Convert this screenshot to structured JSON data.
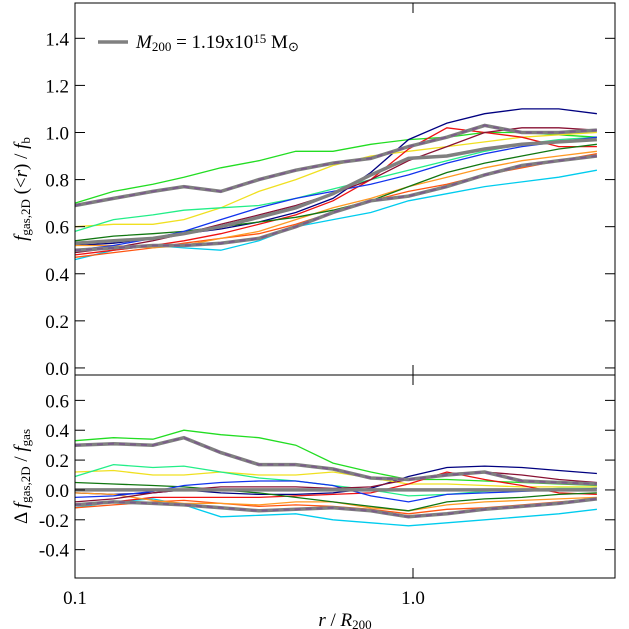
{
  "chart_data": [
    {
      "type": "line",
      "ylabel": [
        "f",
        "gas,2D",
        " (<",
        "r",
        ") / ",
        "f",
        "b"
      ],
      "legend_label": [
        "M",
        "200",
        " = 1.19x10",
        "15",
        " M",
        "⊙"
      ],
      "legend_color": "#808080",
      "x": [
        0.1,
        0.13,
        0.17,
        0.21,
        0.27,
        0.35,
        0.45,
        0.58,
        0.75,
        0.97,
        1.26,
        1.63,
        2.1,
        2.7,
        3.5
      ],
      "xlim": [
        0.1,
        3.96
      ],
      "xticks": [
        0.1,
        1
      ],
      "xlog": true,
      "ylim": [
        -0.03,
        1.55
      ],
      "yticks": [
        {
          "value": 0,
          "label": "0.0"
        },
        0.2,
        0.4,
        0.6,
        0.8,
        {
          "value": 1,
          "label": "1.0"
        },
        1.2,
        1.4
      ],
      "series": [
        {
          "color": "#22dd22",
          "values": [
            0.7,
            0.75,
            0.78,
            0.81,
            0.85,
            0.88,
            0.92,
            0.92,
            0.95,
            0.97,
            0.98,
            1.0,
            1.0,
            0.99,
            0.98
          ]
        },
        {
          "color": "#000080",
          "values": [
            0.52,
            0.53,
            0.55,
            0.57,
            0.59,
            0.62,
            0.66,
            0.72,
            0.83,
            0.97,
            1.04,
            1.08,
            1.1,
            1.1,
            1.08
          ]
        },
        {
          "color": "#00ccee",
          "values": [
            0.46,
            0.5,
            0.52,
            0.51,
            0.5,
            0.54,
            0.6,
            0.63,
            0.66,
            0.71,
            0.74,
            0.77,
            0.79,
            0.81,
            0.84
          ]
        },
        {
          "color": "#f0e020",
          "values": [
            0.6,
            0.61,
            0.61,
            0.63,
            0.68,
            0.75,
            0.8,
            0.86,
            0.9,
            0.92,
            0.94,
            0.96,
            0.98,
            0.99,
            1.0
          ]
        },
        {
          "color": "#22ee88",
          "values": [
            0.58,
            0.63,
            0.65,
            0.67,
            0.68,
            0.69,
            0.72,
            0.76,
            0.8,
            0.84,
            0.88,
            0.92,
            0.95,
            0.97,
            0.98
          ]
        },
        {
          "color": "#ee1111",
          "values": [
            0.48,
            0.5,
            0.52,
            0.54,
            0.57,
            0.61,
            0.65,
            0.71,
            0.8,
            0.93,
            1.02,
            1.0,
            0.98,
            0.94,
            0.94
          ]
        },
        {
          "color": "#ff5511",
          "values": [
            0.47,
            0.49,
            0.51,
            0.53,
            0.55,
            0.57,
            0.61,
            0.66,
            0.71,
            0.75,
            0.78,
            0.82,
            0.85,
            0.88,
            0.91
          ]
        },
        {
          "color": "#ff9922",
          "values": [
            0.52,
            0.52,
            0.51,
            0.52,
            0.55,
            0.58,
            0.63,
            0.68,
            0.72,
            0.77,
            0.81,
            0.85,
            0.88,
            0.9,
            0.92
          ]
        },
        {
          "color": "#117711",
          "values": [
            0.54,
            0.56,
            0.57,
            0.58,
            0.6,
            0.62,
            0.64,
            0.67,
            0.71,
            0.77,
            0.83,
            0.87,
            0.9,
            0.93,
            0.95
          ]
        },
        {
          "color": "#1133ee",
          "values": [
            0.5,
            0.52,
            0.55,
            0.58,
            0.63,
            0.68,
            0.72,
            0.75,
            0.78,
            0.82,
            0.87,
            0.91,
            0.94,
            0.96,
            0.98
          ]
        },
        {
          "color": "#881133",
          "values": [
            0.49,
            0.51,
            0.54,
            0.57,
            0.61,
            0.65,
            0.69,
            0.74,
            0.8,
            0.88,
            0.94,
            1.0,
            1.02,
            1.02,
            1.01
          ]
        },
        {
          "color": "#808080",
          "dash_color": "#7a5a8a",
          "values": [
            0.69,
            0.72,
            0.75,
            0.77,
            0.75,
            0.8,
            0.84,
            0.87,
            0.89,
            0.94,
            0.98,
            1.03,
            1.0,
            1.0,
            1.01
          ]
        },
        {
          "color": "#808080",
          "dash_color": "#7a5a8a",
          "values": [
            0.5,
            0.51,
            0.52,
            0.52,
            0.53,
            0.55,
            0.6,
            0.66,
            0.71,
            0.73,
            0.77,
            0.82,
            0.86,
            0.88,
            0.9
          ]
        },
        {
          "color": "#808080",
          "values": [
            0.53,
            0.54,
            0.55,
            0.57,
            0.6,
            0.64,
            0.68,
            0.74,
            0.82,
            0.89,
            0.9,
            0.93,
            0.95,
            0.96,
            0.97
          ]
        }
      ]
    },
    {
      "type": "line",
      "ylabel": [
        "Δ ",
        "f",
        "gas,2D",
        " / ",
        "f",
        "gas"
      ],
      "xlabel": [
        "r",
        " / ",
        "R",
        "200"
      ],
      "x": [
        0.1,
        0.13,
        0.17,
        0.21,
        0.27,
        0.35,
        0.45,
        0.58,
        0.75,
        0.97,
        1.26,
        1.63,
        2.1,
        2.7,
        3.5
      ],
      "xlim": [
        0.1,
        3.96
      ],
      "xticks": [
        0.1,
        {
          "value": 1,
          "label": "1.0"
        }
      ],
      "xlog": true,
      "ylim": [
        -0.59,
        0.77
      ],
      "yticks": [
        -0.4,
        -0.2,
        {
          "value": 0,
          "label": "0.0"
        },
        0.2,
        0.4,
        0.6
      ],
      "series": [
        {
          "color": "#22dd22",
          "values": [
            0.33,
            0.35,
            0.34,
            0.4,
            0.37,
            0.35,
            0.3,
            0.18,
            0.12,
            0.07,
            0.07,
            0.06,
            0.05,
            0.04,
            0.03
          ]
        },
        {
          "color": "#000080",
          "values": [
            -0.02,
            -0.03,
            -0.02,
            0.0,
            -0.02,
            -0.03,
            -0.03,
            -0.02,
            0.01,
            0.09,
            0.15,
            0.16,
            0.15,
            0.13,
            0.11
          ]
        },
        {
          "color": "#00ccee",
          "values": [
            -0.12,
            -0.08,
            -0.06,
            -0.1,
            -0.18,
            -0.17,
            -0.16,
            -0.2,
            -0.22,
            -0.24,
            -0.22,
            -0.2,
            -0.18,
            -0.16,
            -0.13
          ]
        },
        {
          "color": "#f0e020",
          "values": [
            0.12,
            0.13,
            0.1,
            0.1,
            0.12,
            0.1,
            0.1,
            0.12,
            0.08,
            0.04,
            0.04,
            0.03,
            0.02,
            0.02,
            0.02
          ]
        },
        {
          "color": "#22ee88",
          "values": [
            0.09,
            0.17,
            0.15,
            0.16,
            0.12,
            0.08,
            0.06,
            0.03,
            0.0,
            -0.04,
            -0.03,
            -0.01,
            0.0,
            0.01,
            0.01
          ]
        },
        {
          "color": "#ee1111",
          "values": [
            -0.1,
            -0.08,
            -0.05,
            -0.05,
            -0.05,
            -0.05,
            -0.04,
            -0.03,
            -0.02,
            0.04,
            0.12,
            0.07,
            0.03,
            -0.02,
            -0.03
          ]
        },
        {
          "color": "#ff5511",
          "values": [
            -0.12,
            -0.1,
            -0.08,
            -0.07,
            -0.09,
            -0.11,
            -0.1,
            -0.11,
            -0.13,
            -0.16,
            -0.13,
            -0.12,
            -0.1,
            -0.08,
            -0.06
          ]
        },
        {
          "color": "#ff9922",
          "values": [
            -0.02,
            -0.03,
            -0.07,
            -0.09,
            -0.09,
            -0.1,
            -0.08,
            -0.08,
            -0.12,
            -0.14,
            -0.1,
            -0.08,
            -0.07,
            -0.06,
            -0.05
          ]
        },
        {
          "color": "#117711",
          "values": [
            0.05,
            0.04,
            0.03,
            0.02,
            0.0,
            -0.02,
            -0.05,
            -0.08,
            -0.11,
            -0.14,
            -0.08,
            -0.06,
            -0.05,
            -0.03,
            -0.02
          ]
        },
        {
          "color": "#1133ee",
          "values": [
            -0.05,
            -0.04,
            -0.01,
            0.03,
            0.05,
            0.06,
            0.06,
            0.03,
            -0.04,
            -0.08,
            -0.03,
            -0.02,
            -0.01,
            0.0,
            0.01
          ]
        },
        {
          "color": "#881133",
          "values": [
            -0.08,
            -0.06,
            -0.02,
            0.0,
            0.02,
            0.02,
            0.02,
            0.01,
            0.02,
            0.07,
            0.11,
            0.12,
            0.1,
            0.07,
            0.05
          ]
        },
        {
          "color": "#808080",
          "dash_color": "#7a5a8a",
          "values": [
            0.3,
            0.31,
            0.3,
            0.35,
            0.25,
            0.17,
            0.17,
            0.14,
            0.08,
            0.07,
            0.1,
            0.12,
            0.06,
            0.05,
            0.04
          ]
        },
        {
          "color": "#808080",
          "dash_color": "#7a5a8a",
          "values": [
            -0.1,
            -0.08,
            -0.09,
            -0.1,
            -0.12,
            -0.14,
            -0.13,
            -0.12,
            -0.14,
            -0.18,
            -0.16,
            -0.13,
            -0.11,
            -0.09,
            -0.06
          ]
        },
        {
          "color": "#808080",
          "values": [
            0,
            0,
            0,
            0,
            0,
            0,
            0,
            0,
            0,
            0,
            0,
            0,
            0,
            0,
            0
          ]
        }
      ]
    }
  ]
}
